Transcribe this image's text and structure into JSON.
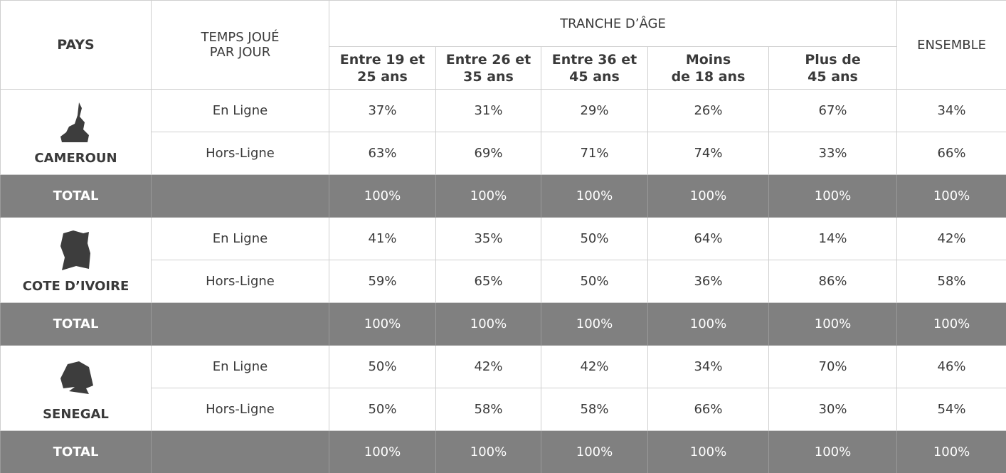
{
  "header": {
    "country": "PAYS",
    "time": "TEMPS JOUÉ\nPAR JOUR",
    "age_group": "TRANCHE D’ÂGE",
    "age_columns": [
      "Entre  19 et\n25 ans",
      "Entre  26 et\n35 ans",
      "Entre  36 et\n45 ans",
      "Moins\nde 18 ans",
      "Plus de\n45 ans"
    ],
    "overall": "ENSEMBLE"
  },
  "countries": [
    {
      "name": "CAMEROUN",
      "rows": [
        {
          "label": "En Ligne",
          "values": [
            "37%",
            "31%",
            "29%",
            "26%",
            "67%",
            "34%"
          ]
        },
        {
          "label": "Hors-Ligne",
          "values": [
            "63%",
            "69%",
            "71%",
            "74%",
            "33%",
            "66%"
          ]
        }
      ],
      "total": {
        "label": "TOTAL",
        "values": [
          "100%",
          "100%",
          "100%",
          "100%",
          "100%",
          "100%"
        ]
      }
    },
    {
      "name": "COTE D’IVOIRE",
      "rows": [
        {
          "label": "En Ligne",
          "values": [
            "41%",
            "35%",
            "50%",
            "64%",
            "14%",
            "42%"
          ]
        },
        {
          "label": "Hors-Ligne",
          "values": [
            "59%",
            "65%",
            "50%",
            "36%",
            "86%",
            "58%"
          ]
        }
      ],
      "total": {
        "label": "TOTAL",
        "values": [
          "100%",
          "100%",
          "100%",
          "100%",
          "100%",
          "100%"
        ]
      }
    },
    {
      "name": "SENEGAL",
      "rows": [
        {
          "label": "En Ligne",
          "values": [
            "50%",
            "42%",
            "42%",
            "34%",
            "70%",
            "46%"
          ]
        },
        {
          "label": "Hors-Ligne",
          "values": [
            "50%",
            "58%",
            "58%",
            "66%",
            "30%",
            "54%"
          ]
        }
      ],
      "total": {
        "label": "TOTAL",
        "values": [
          "100%",
          "100%",
          "100%",
          "100%",
          "100%",
          "100%"
        ]
      }
    }
  ]
}
